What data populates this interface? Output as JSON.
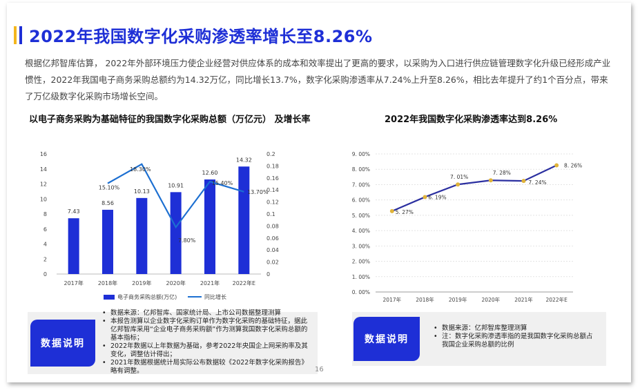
{
  "title": "2022年我国数字化采购渗透率增长至8.26%",
  "intro": "根据亿邦智库估算， 2022年外部环境压力使企业经营对供应体系的成本和效率提出了更高的要求，以采购为入口进行供应链管理数字化升级已经形成产业惯性，2022年我国电子商务采购总额约为14.32万亿，同比增长13.7%，数字化采购渗透率从7.24%上升至8.26%，相比去年提升了约1个百分点，带来了万亿级数字化采购市场增长空间。",
  "colors": {
    "blue": "#1e2fd6",
    "line_blue": "#1c6fd1",
    "yellow": "#f3b61f",
    "gold_marker": "#e0b43a",
    "line_navy": "#2b2fa0"
  },
  "chart_data": [
    {
      "type": "bar",
      "title": "以电子商务采购为基础特征的我国数字化采购总额（万亿元） 及增长率",
      "categories": [
        "2017年",
        "2018年",
        "2019年",
        "2020年",
        "2021年",
        "2022年E"
      ],
      "y_ticks": [
        "0",
        "2",
        "4",
        "6",
        "8",
        "10",
        "12",
        "14",
        "16"
      ],
      "y2_ticks": [
        "0",
        "0.02",
        "0.04",
        "0.06",
        "0.08",
        "0.1",
        "0.12",
        "0.14",
        "0.16",
        "0.18",
        "0.2"
      ],
      "ylim": [
        0,
        16
      ],
      "y2lim": [
        0,
        0.2
      ],
      "series": [
        {
          "name": "电子商务采购总额(万亿)",
          "kind": "bar",
          "values": [
            7.43,
            8.56,
            10.13,
            10.91,
            12.6,
            14.32
          ],
          "labels": [
            "7.43",
            "8.56",
            "10.13",
            "10.91",
            "12.60",
            "14.32"
          ]
        },
        {
          "name": "同比增长",
          "kind": "line",
          "values": [
            null,
            0.151,
            0.183,
            0.078,
            0.154,
            0.137
          ],
          "labels": [
            "",
            "15.10%",
            "18.30%",
            "7.80%",
            "15.40%",
            "13.70%"
          ]
        }
      ]
    },
    {
      "type": "line",
      "title": "2022年我国数字化采购渗透率达到8.26%",
      "categories": [
        "2017年",
        "2018年",
        "2019年",
        "2020年",
        "2021年",
        "2022年E"
      ],
      "y_ticks": [
        "0. 00%",
        "1. 00%",
        "2. 00%",
        "3. 00%",
        "4. 00%",
        "5. 00%",
        "6. 00%",
        "7. 00%",
        "8. 00%",
        "9. 00%"
      ],
      "ylim": [
        0,
        9
      ],
      "series": [
        {
          "values": [
            5.27,
            6.19,
            7.01,
            7.28,
            7.24,
            8.26
          ],
          "labels": [
            "5. 27%",
            "6. 19%",
            "7. 01%",
            "7. 28%",
            "7. 24%",
            "8. 26%"
          ]
        }
      ]
    }
  ],
  "notes_left": {
    "label": "数据说明",
    "items": [
      "数据来源：亿邦智库、国家统计局、上市公司数据整理测算",
      "本报告测算以企业数字化采购订单作为数字化采购的基础特征，据此亿邦智库采用“企业电子商务采购额”作为测算我国数字化采购总额的基本指标；",
      "2022年数据以上年数据为基础，参考2022年央国企上网采购率及其变化，调整估计得出；",
      "2021年数据根据统计局实际公布数据较《2022年数字化采购报告》略有调整。"
    ]
  },
  "notes_right": {
    "label": "数据说明",
    "items": [
      "数据来源：亿邦智库整理测算",
      "注：数字化采购渗透率指的是我国数字化采购总额占我国企业采购总额的比例"
    ]
  },
  "page_number": "16"
}
